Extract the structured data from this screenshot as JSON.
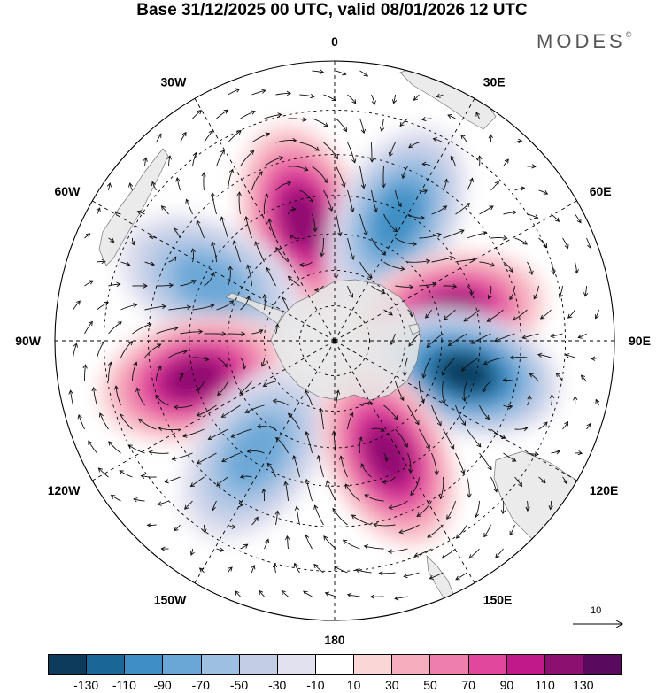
{
  "title": "Base 31/12/2025 00 UTC, valid 08/01/2026 12 UTC",
  "brand": "MODES",
  "brand_mark": "©",
  "projection": "south-polar-stereographic",
  "longitude_labels": [
    {
      "text": "0",
      "lon": 0
    },
    {
      "text": "30E",
      "lon": 30
    },
    {
      "text": "60E",
      "lon": 60
    },
    {
      "text": "90E",
      "lon": 90
    },
    {
      "text": "120E",
      "lon": 120
    },
    {
      "text": "150E",
      "lon": 150
    },
    {
      "text": "180",
      "lon": 180
    },
    {
      "text": "150W",
      "lon": -150
    },
    {
      "text": "120W",
      "lon": -120
    },
    {
      "text": "90W",
      "lon": -90
    },
    {
      "text": "60W",
      "lon": -60
    },
    {
      "text": "30W",
      "lon": -30
    }
  ],
  "anomaly_centers": [
    {
      "sign": "positive",
      "lon": -15,
      "lat": -55,
      "magnitude": 120
    },
    {
      "sign": "negative",
      "lon": 27,
      "lat": -52,
      "magnitude": -100
    },
    {
      "sign": "negative",
      "lon": -65,
      "lat": -52,
      "magnitude": -70
    },
    {
      "sign": "positive",
      "lon": 77,
      "lat": -57,
      "magnitude": 120
    },
    {
      "sign": "positive",
      "lon": -105,
      "lat": -50,
      "magnitude": 110
    },
    {
      "sign": "negative",
      "lon": 104,
      "lat": -53,
      "magnitude": -130
    },
    {
      "sign": "negative",
      "lon": -145,
      "lat": -52,
      "magnitude": -70
    },
    {
      "sign": "positive",
      "lon": 155,
      "lat": -55,
      "magnitude": 110
    }
  ],
  "vector_scale_label": "10",
  "colorbar": {
    "colors": [
      "#0d3b5c",
      "#1a6696",
      "#3f8ec4",
      "#6aa6d6",
      "#9cbfe2",
      "#c3cde6",
      "#e1e1ef",
      "#ffffff",
      "#fbd6d6",
      "#f6adbe",
      "#ee7eab",
      "#e0479d",
      "#c1198a",
      "#8c1070",
      "#5a0a5e"
    ],
    "labels": [
      "-130",
      "-110",
      "-90",
      "-70",
      "-50",
      "-30",
      "-10",
      "10",
      "30",
      "50",
      "70",
      "90",
      "110",
      "130"
    ]
  }
}
